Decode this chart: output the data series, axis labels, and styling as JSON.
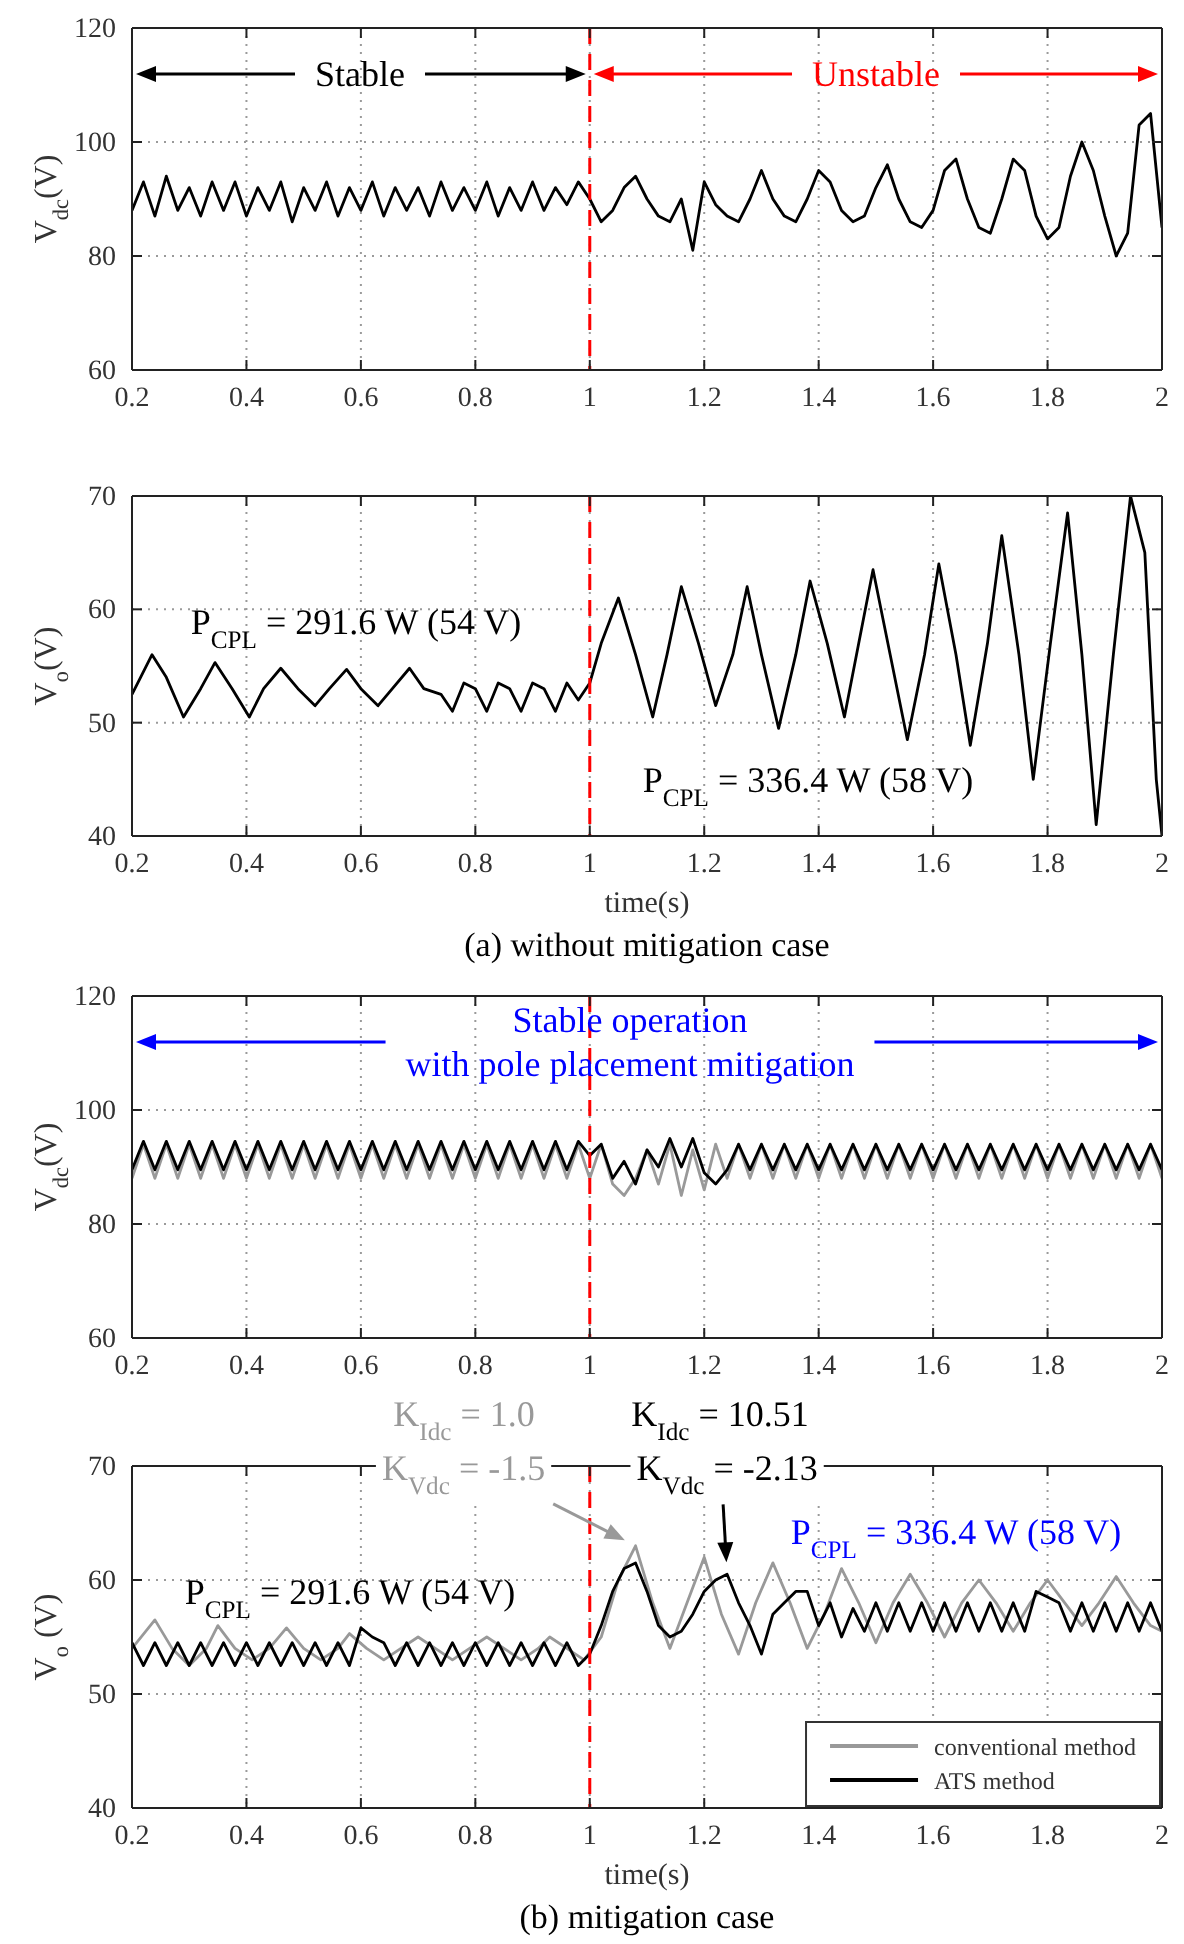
{
  "chart_data": [
    {
      "type": "line",
      "ylabel": "V$_{dc}$(V)",
      "xlim": [
        0.2,
        2
      ],
      "ylim": [
        60,
        120
      ],
      "xticks": [
        0.2,
        0.4,
        0.6,
        0.8,
        1,
        1.2,
        1.4,
        1.6,
        1.8,
        2
      ],
      "yticks": [
        60,
        80,
        100,
        120
      ],
      "grid": true,
      "x": [
        0.2,
        0.22,
        0.24,
        0.26,
        0.28,
        0.3,
        0.32,
        0.34,
        0.36,
        0.38,
        0.4,
        0.42,
        0.44,
        0.46,
        0.48,
        0.5,
        0.52,
        0.54,
        0.56,
        0.58,
        0.6,
        0.62,
        0.64,
        0.66,
        0.68,
        0.7,
        0.72,
        0.74,
        0.76,
        0.78,
        0.8,
        0.82,
        0.84,
        0.86,
        0.88,
        0.9,
        0.92,
        0.94,
        0.96,
        0.98,
        1,
        1.02,
        1.04,
        1.06,
        1.08,
        1.1,
        1.12,
        1.14,
        1.16,
        1.18,
        1.2,
        1.22,
        1.24,
        1.26,
        1.28,
        1.3,
        1.32,
        1.34,
        1.36,
        1.38,
        1.4,
        1.42,
        1.44,
        1.46,
        1.48,
        1.5,
        1.52,
        1.54,
        1.56,
        1.58,
        1.6,
        1.62,
        1.64,
        1.66,
        1.68,
        1.7,
        1.72,
        1.74,
        1.76,
        1.78,
        1.8,
        1.82,
        1.84,
        1.86,
        1.88,
        1.9,
        1.92,
        1.94,
        1.96,
        1.98,
        2
      ],
      "series": [
        {
          "color": "#000000",
          "values": [
            88,
            93,
            87,
            94,
            88,
            92,
            87,
            93,
            88,
            93,
            87,
            92,
            88,
            93,
            86,
            92,
            88,
            93,
            87,
            92,
            88,
            93,
            87,
            92,
            88,
            92,
            87,
            93,
            88,
            92,
            88,
            93,
            87,
            92,
            88,
            93,
            88,
            92,
            89,
            93,
            90,
            86,
            88,
            92,
            94,
            90,
            87,
            86,
            90,
            81,
            93,
            89,
            87,
            86,
            90,
            95,
            90,
            87,
            86,
            90,
            95,
            93,
            88,
            86,
            87,
            92,
            96,
            90,
            86,
            85,
            88,
            95,
            97,
            90,
            85,
            84,
            90,
            97,
            95,
            87,
            83,
            85,
            94,
            100,
            95,
            87,
            80,
            84,
            103,
            105,
            85
          ]
        }
      ],
      "ref_lines": [
        {
          "axis": "x",
          "value": 1,
          "color": "#ff0000",
          "line_style": "dashed"
        }
      ],
      "annotations": [
        "Stable",
        "Unstable"
      ]
    },
    {
      "type": "line",
      "xlabel": "time(s)",
      "ylabel": "V$_{o}$(V)",
      "xlim": [
        0.2,
        2
      ],
      "ylim": [
        40,
        70
      ],
      "xticks": [
        0.2,
        0.4,
        0.6,
        0.8,
        1,
        1.2,
        1.4,
        1.6,
        1.8,
        2
      ],
      "yticks": [
        40,
        50,
        60,
        70
      ],
      "grid": true,
      "x": [
        0.2,
        0.215,
        0.235,
        0.26,
        0.29,
        0.32,
        0.345,
        0.375,
        0.405,
        0.43,
        0.46,
        0.49,
        0.52,
        0.545,
        0.575,
        0.6,
        0.63,
        0.655,
        0.685,
        0.71,
        0.74,
        0.76,
        0.78,
        0.8,
        0.82,
        0.84,
        0.86,
        0.88,
        0.9,
        0.92,
        0.94,
        0.96,
        0.98,
        1,
        1.02,
        1.05,
        1.08,
        1.11,
        1.135,
        1.16,
        1.19,
        1.22,
        1.25,
        1.275,
        1.3,
        1.33,
        1.36,
        1.385,
        1.415,
        1.445,
        1.47,
        1.495,
        1.525,
        1.555,
        1.585,
        1.61,
        1.64,
        1.665,
        1.695,
        1.72,
        1.75,
        1.775,
        1.805,
        1.835,
        1.86,
        1.885,
        1.915,
        1.945,
        1.97,
        1.99,
        2
      ],
      "series": [
        {
          "color": "#000000",
          "values": [
            52.5,
            54,
            56,
            54,
            50.5,
            53,
            55.3,
            53,
            50.5,
            53,
            54.8,
            53,
            51.5,
            53,
            54.7,
            53,
            51.5,
            53,
            54.8,
            53,
            52.5,
            51,
            53.5,
            53,
            51,
            53.5,
            53,
            51,
            53.5,
            53,
            51,
            53.5,
            52,
            53.5,
            57,
            61,
            56,
            50.5,
            56,
            62,
            57,
            51.5,
            56,
            62,
            56,
            49.5,
            56,
            62.5,
            57,
            50.5,
            57,
            63.5,
            56,
            48.5,
            56,
            64,
            56,
            48,
            57,
            66.5,
            56,
            45,
            57,
            68.5,
            56,
            41,
            56,
            70,
            65,
            45,
            40
          ]
        }
      ],
      "ref_lines": [
        {
          "axis": "x",
          "value": 1,
          "color": "#ff0000",
          "line_style": "dashed"
        }
      ],
      "annotations": [
        "P$_{CPL}$ = 291.6 W (54 V)",
        "P$_{CPL}$ = 336.4 W (58 V)",
        "(a) without mitigation case"
      ]
    },
    {
      "type": "line",
      "ylabel": "V$_{dc}$(V)",
      "xlim": [
        0.2,
        2
      ],
      "ylim": [
        60,
        120
      ],
      "xticks": [
        0.2,
        0.4,
        0.6,
        0.8,
        1,
        1.2,
        1.4,
        1.6,
        1.8,
        2
      ],
      "yticks": [
        60,
        80,
        100,
        120
      ],
      "grid": true,
      "x": [
        0.2,
        0.22,
        0.24,
        0.26,
        0.28,
        0.3,
        0.32,
        0.34,
        0.36,
        0.38,
        0.4,
        0.42,
        0.44,
        0.46,
        0.48,
        0.5,
        0.52,
        0.54,
        0.56,
        0.58,
        0.6,
        0.62,
        0.64,
        0.66,
        0.68,
        0.7,
        0.72,
        0.74,
        0.76,
        0.78,
        0.8,
        0.82,
        0.84,
        0.86,
        0.88,
        0.9,
        0.92,
        0.94,
        0.96,
        0.98,
        1,
        1.02,
        1.04,
        1.06,
        1.08,
        1.1,
        1.12,
        1.14,
        1.16,
        1.18,
        1.2,
        1.22,
        1.24,
        1.26,
        1.28,
        1.3,
        1.32,
        1.34,
        1.36,
        1.38,
        1.4,
        1.42,
        1.44,
        1.46,
        1.48,
        1.5,
        1.52,
        1.54,
        1.56,
        1.58,
        1.6,
        1.62,
        1.64,
        1.66,
        1.68,
        1.7,
        1.72,
        1.74,
        1.76,
        1.78,
        1.8,
        1.82,
        1.84,
        1.86,
        1.88,
        1.9,
        1.92,
        1.94,
        1.96,
        1.98,
        2
      ],
      "series": [
        {
          "color": "#999999",
          "values": [
            88,
            94,
            88,
            94,
            88,
            94,
            88,
            94,
            88,
            94,
            88,
            94,
            88,
            94,
            88,
            94,
            88,
            94,
            88,
            94,
            88,
            94,
            88,
            94,
            88,
            94,
            88,
            94,
            88,
            94,
            88,
            94,
            88,
            94,
            88,
            94,
            88,
            94,
            88,
            94,
            88,
            94,
            87,
            85,
            88,
            93,
            87,
            94,
            85,
            93,
            86,
            94,
            88,
            94,
            88,
            94,
            88,
            94,
            88,
            94,
            88,
            94,
            88,
            94,
            88,
            94,
            88,
            94,
            88,
            94,
            88,
            94,
            88,
            94,
            88,
            94,
            88,
            94,
            88,
            94,
            88,
            94,
            88,
            94,
            88,
            94,
            88,
            94,
            88,
            94,
            88
          ]
        },
        {
          "color": "#000000",
          "values": [
            89.5,
            94.5,
            89.5,
            94.5,
            89.5,
            94.5,
            89.5,
            94.5,
            89.5,
            94.5,
            89.5,
            94.5,
            89.5,
            94.5,
            89.5,
            94.5,
            89.5,
            94.5,
            89.5,
            94.5,
            89.5,
            94.5,
            89.5,
            94.5,
            89.5,
            94.5,
            89.5,
            94.5,
            89.5,
            94.5,
            89.5,
            94.5,
            89.5,
            94.5,
            89.5,
            94.5,
            89.5,
            94.5,
            89.5,
            94.5,
            92,
            94,
            88,
            91,
            87,
            93,
            90,
            95,
            90,
            95,
            89,
            87,
            89.5,
            94,
            89.5,
            94,
            89.5,
            94,
            89.5,
            94,
            89.5,
            94,
            89.5,
            94,
            89.5,
            94,
            89.5,
            94,
            89.5,
            94,
            89.5,
            94,
            89.5,
            94,
            89.5,
            94,
            89.5,
            94,
            89.5,
            94,
            89.5,
            94,
            89.5,
            94,
            89.5,
            94,
            89.5,
            94,
            89.5,
            94,
            89.5
          ]
        }
      ],
      "ref_lines": [
        {
          "axis": "x",
          "value": 1,
          "color": "#ff0000",
          "line_style": "dashed"
        }
      ],
      "annotations": [
        "Stable operation\nwith pole placement mitigation"
      ]
    },
    {
      "type": "line",
      "xlabel": "time(s)",
      "ylabel": "V$_{o}$ (V)",
      "xlim": [
        0.2,
        2
      ],
      "ylim": [
        40,
        70
      ],
      "xticks": [
        0.2,
        0.4,
        0.6,
        0.8,
        1,
        1.2,
        1.4,
        1.6,
        1.8,
        2
      ],
      "yticks": [
        40,
        50,
        60,
        70
      ],
      "grid": true,
      "legend": "bottom right",
      "x": [
        0.2,
        0.22,
        0.24,
        0.26,
        0.28,
        0.3,
        0.32,
        0.34,
        0.36,
        0.38,
        0.4,
        0.42,
        0.44,
        0.46,
        0.48,
        0.5,
        0.52,
        0.54,
        0.56,
        0.58,
        0.6,
        0.62,
        0.64,
        0.66,
        0.68,
        0.7,
        0.72,
        0.74,
        0.76,
        0.78,
        0.8,
        0.82,
        0.84,
        0.86,
        0.88,
        0.9,
        0.92,
        0.94,
        0.96,
        0.98,
        1,
        1.02,
        1.04,
        1.06,
        1.08,
        1.1,
        1.12,
        1.14,
        1.16,
        1.18,
        1.2,
        1.22,
        1.24,
        1.26,
        1.28,
        1.3,
        1.32,
        1.34,
        1.36,
        1.38,
        1.4,
        1.42,
        1.44,
        1.46,
        1.48,
        1.5,
        1.52,
        1.54,
        1.56,
        1.58,
        1.6,
        1.62,
        1.64,
        1.66,
        1.68,
        1.7,
        1.72,
        1.74,
        1.76,
        1.78,
        1.8,
        1.82,
        1.84,
        1.86,
        1.88,
        1.9,
        1.92,
        1.94,
        1.96,
        1.98,
        2
      ],
      "series": [
        {
          "name": "conventional method",
          "color": "#999999",
          "x": [
            0.2,
            0.24,
            0.27,
            0.3,
            0.33,
            0.35,
            0.38,
            0.41,
            0.44,
            0.47,
            0.5,
            0.53,
            0.56,
            0.58,
            0.61,
            0.64,
            0.67,
            0.7,
            0.73,
            0.76,
            0.79,
            0.82,
            0.85,
            0.88,
            0.91,
            0.93,
            0.96,
            0.99,
            1.02,
            1.05,
            1.08,
            1.11,
            1.14,
            1.17,
            1.2,
            1.23,
            1.26,
            1.29,
            1.32,
            1.35,
            1.38,
            1.41,
            1.44,
            1.47,
            1.5,
            1.53,
            1.56,
            1.59,
            1.62,
            1.65,
            1.68,
            1.71,
            1.74,
            1.77,
            1.8,
            1.83,
            1.86,
            1.89,
            1.92,
            1.95,
            1.98,
            2
          ],
          "values": [
            54,
            56.5,
            54,
            52.5,
            54,
            56,
            54,
            53,
            54,
            55.8,
            54,
            53,
            54,
            55.3,
            54,
            53,
            54,
            55,
            54,
            53,
            54,
            55,
            54,
            53,
            54,
            55,
            54,
            53,
            55,
            60,
            63,
            58,
            54,
            58,
            62,
            57,
            53.5,
            58,
            61.5,
            58,
            54,
            57,
            61,
            58,
            54.5,
            58,
            60.5,
            58,
            55,
            58,
            60,
            58,
            55.5,
            58,
            60,
            58,
            56,
            58,
            60.3,
            58,
            56,
            55.5
          ]
        },
        {
          "name": "ATS method",
          "color": "#000000",
          "values": [
            54.5,
            52.5,
            54.5,
            52.5,
            54.5,
            52.5,
            54.5,
            52.5,
            54.5,
            52.5,
            54.5,
            52.5,
            54.5,
            52.5,
            54.5,
            52.5,
            54.5,
            52.5,
            54.5,
            52.5,
            55.8,
            55,
            54.5,
            52.5,
            54.5,
            52.5,
            54.5,
            52.5,
            54.5,
            52.5,
            54.5,
            52.5,
            54.5,
            52.5,
            54.5,
            52.5,
            54.5,
            52.5,
            54.5,
            52.5,
            53.5,
            56,
            59,
            61,
            61.5,
            59,
            56,
            55,
            55.5,
            57,
            59,
            60,
            60.5,
            58,
            56,
            53.5,
            57,
            58,
            59,
            59,
            56,
            58,
            55,
            57.5,
            55.5,
            58,
            55.5,
            58,
            55.5,
            58,
            55.5,
            58,
            55.5,
            58,
            55.5,
            58,
            55.5,
            58,
            55.5,
            59,
            58.5,
            58,
            55.5,
            58,
            55.5,
            58,
            55.5,
            58,
            55.5,
            58,
            55.5
          ]
        }
      ],
      "ref_lines": [
        {
          "axis": "x",
          "value": 1,
          "color": "#ff0000",
          "line_style": "dashed"
        }
      ],
      "annotations": [
        "K$_{Idc}$ = 1.0",
        "K$_{Idc}$ = 10.51",
        {
          "text": "K$_{Vdc}$ = -1.5",
          "x": 1.08,
          "y": 63
        },
        {
          "text": "K$_{Vdc}$ = -2.13",
          "x": 1.24,
          "y": 60.5
        },
        "P$_{CPL}$ = 291.6 W (54 V)",
        "P$_{CPL}$ = 336.4 W (58 V)",
        "(b) mitigation case"
      ]
    }
  ]
}
